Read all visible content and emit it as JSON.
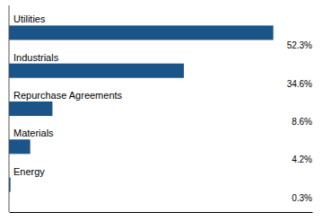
{
  "chart_data": {
    "type": "bar",
    "orientation": "horizontal",
    "categories": [
      "Energy",
      "Materials",
      "Repurchase Agreements",
      "Industrials",
      "Utilities"
    ],
    "values": [
      0.3,
      4.2,
      8.6,
      34.6,
      52.3
    ],
    "value_labels": [
      "0.3%",
      "4.2%",
      "8.6%",
      "34.6%",
      "52.3%"
    ],
    "data_labels": true,
    "color": "#1a5488",
    "xlim": [
      0,
      60
    ],
    "tick_labels": false
  }
}
